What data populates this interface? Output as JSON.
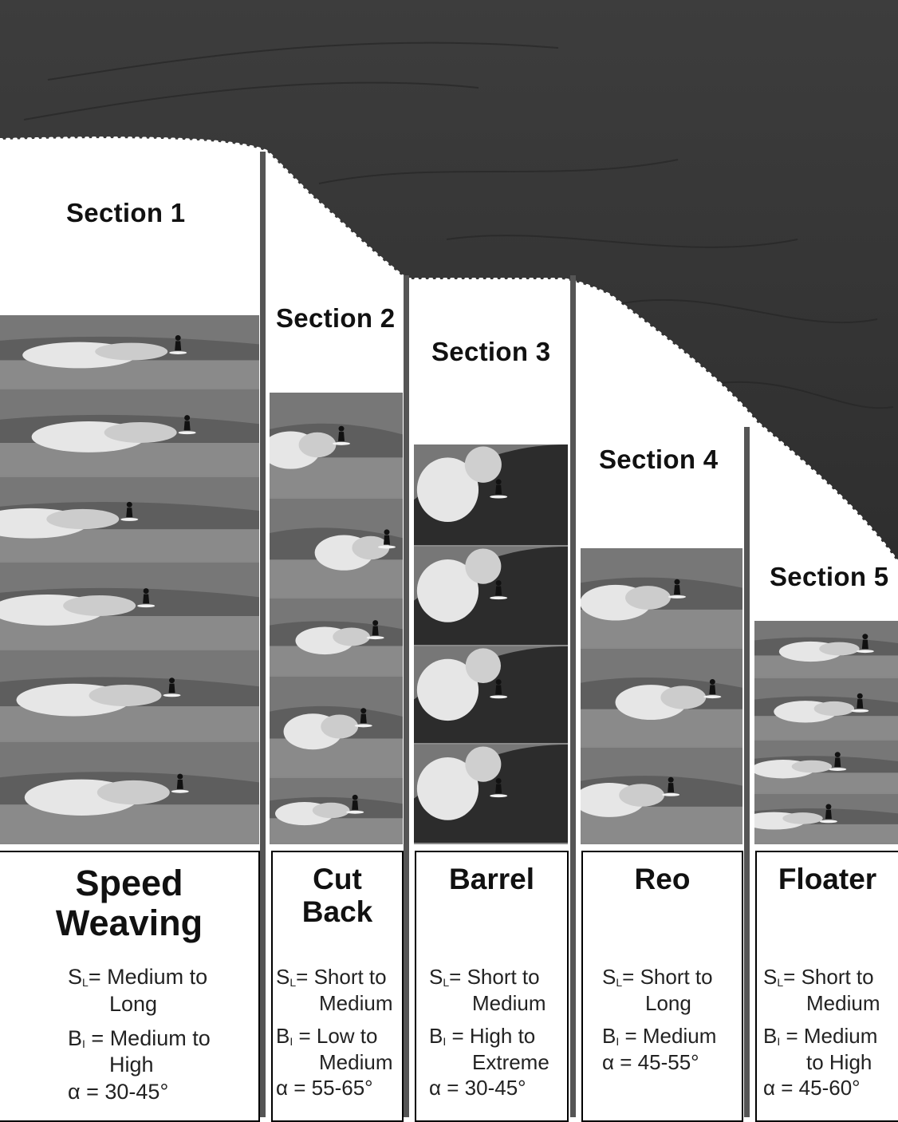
{
  "sections": [
    {
      "label": "Section 1",
      "maneuver_lines": [
        "Speed",
        "Weaving"
      ],
      "SL": {
        "sym": "S",
        "sub": "L",
        "value": "Medium to",
        "cont": "Long"
      },
      "BI": {
        "sym": "B",
        "sub": "I",
        "value": "Medium to",
        "cont": "High"
      },
      "alpha": {
        "sym": "α",
        "value": "30-45°"
      }
    },
    {
      "label": "Section 2",
      "maneuver_lines": [
        "Cut",
        "Back"
      ],
      "SL": {
        "sym": "S",
        "sub": "L",
        "value": "Short to",
        "cont": "Medium"
      },
      "BI": {
        "sym": "B",
        "sub": "I",
        "value": "Low to",
        "cont": "Medium"
      },
      "alpha": {
        "sym": "α",
        "value": "55-65°"
      }
    },
    {
      "label": "Section 3",
      "maneuver_lines": [
        "Barrel"
      ],
      "SL": {
        "sym": "S",
        "sub": "L",
        "value": "Short to",
        "cont": "Medium"
      },
      "BI": {
        "sym": "B",
        "sub": "I",
        "value": "High to",
        "cont": "Extreme"
      },
      "alpha": {
        "sym": "α",
        "value": "30-45°"
      }
    },
    {
      "label": "Section 4",
      "maneuver_lines": [
        "Reo"
      ],
      "SL": {
        "sym": "S",
        "sub": "L",
        "value": "Short to",
        "cont": "Long"
      },
      "BI": {
        "sym": "B",
        "sub": "I",
        "value": "Medium",
        "cont": ""
      },
      "alpha": {
        "sym": "α",
        "value": "45-55°"
      }
    },
    {
      "label": "Section 5",
      "maneuver_lines": [
        "Floater"
      ],
      "SL": {
        "sym": "S",
        "sub": "L",
        "value": "Short to",
        "cont": "Medium"
      },
      "BI": {
        "sym": "B",
        "sub": "I",
        "value": "Medium",
        "cont": "to High"
      },
      "alpha": {
        "sym": "α",
        "value": "45-60°"
      }
    }
  ],
  "colors": {
    "wave_face": "#3a3a3a",
    "photo_water": "#777777",
    "foam": "#e6e6e6"
  }
}
